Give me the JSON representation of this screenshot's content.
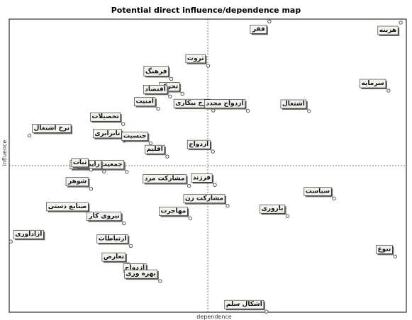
{
  "chart_data": {
    "type": "scatter",
    "title": "Potential direct influence/dependence map",
    "xlabel": "dependence",
    "ylabel": "influence",
    "xlim": [
      0,
      100
    ],
    "ylim": [
      0,
      100
    ],
    "x_divider": 50,
    "y_divider": 50,
    "grid": false,
    "colors": {
      "frame": "#000000",
      "divider": "#555555",
      "point": "#555555",
      "label_bg": "#f4f4ee",
      "label_shadow": "#666666"
    },
    "points": [
      {
        "label": "هزینه",
        "x": 98.6,
        "y": 98.8
      },
      {
        "label": "فقر",
        "x": 65.5,
        "y": 99.2
      },
      {
        "label": "ثروت",
        "x": 50.1,
        "y": 84.1
      },
      {
        "label": "فرهنگ",
        "x": 40.8,
        "y": 79.6
      },
      {
        "label": "تحرک",
        "x": 43.6,
        "y": 74.5
      },
      {
        "label": "اقتصاد",
        "x": 40.5,
        "y": 73.6
      },
      {
        "label": "امنیت",
        "x": 37.5,
        "y": 69.4
      },
      {
        "label": "نرخ بیکاری",
        "x": 51.4,
        "y": 68.8
      },
      {
        "label": "ازدواج مجدد",
        "x": 60.1,
        "y": 68.7
      },
      {
        "label": "اشتغال",
        "x": 75.5,
        "y": 68.6
      },
      {
        "label": "سرمایه",
        "x": 95.5,
        "y": 75.6
      },
      {
        "label": "تحصیلات",
        "x": 28.7,
        "y": 64.2
      },
      {
        "label": "نرخ اشتغال",
        "x": 5.1,
        "y": 60.3
      },
      {
        "label": "نابرابری",
        "x": 29.0,
        "y": 58.5
      },
      {
        "label": "جنسیت",
        "x": 35.6,
        "y": 57.6
      },
      {
        "label": "اقلیم",
        "x": 39.8,
        "y": 53.1
      },
      {
        "label": "ازدواج",
        "x": 51.3,
        "y": 54.8
      },
      {
        "label": "جمعیت اجتماعی",
        "x": 29.6,
        "y": 47.9
      },
      {
        "label": "زایمان",
        "x": 23.9,
        "y": 48.0
      },
      {
        "label": "ثبات",
        "x": 20.6,
        "y": 48.6
      },
      {
        "label": "شوهر",
        "x": 20.6,
        "y": 42.1
      },
      {
        "label": "فرزند",
        "x": 51.8,
        "y": 43.4
      },
      {
        "label": "مشارکت مرد",
        "x": 45.3,
        "y": 43.1
      },
      {
        "label": "مشارکت زن",
        "x": 55.0,
        "y": 36.3
      },
      {
        "label": "سیاست",
        "x": 81.8,
        "y": 38.8
      },
      {
        "label": "باروری",
        "x": 70.1,
        "y": 32.8
      },
      {
        "label": "صنایع دستی",
        "x": 20.6,
        "y": 33.6
      },
      {
        "label": "نیروی کار",
        "x": 28.9,
        "y": 30.3
      },
      {
        "label": "مهاجرت",
        "x": 45.6,
        "y": 32.0
      },
      {
        "label": "ازاداوری",
        "x": 0.4,
        "y": 24.1
      },
      {
        "label": "ارتباطات",
        "x": 30.6,
        "y": 22.6
      },
      {
        "label": "تعارض",
        "x": 30.0,
        "y": 16.4
      },
      {
        "label": "ازدواج",
        "x": 35.2,
        "y": 12.7
      },
      {
        "label": "بهره وری",
        "x": 38.0,
        "y": 10.6
      },
      {
        "label": "تنوع",
        "x": 97.2,
        "y": 19.0
      },
      {
        "label": "اشکال سلم",
        "x": 64.8,
        "y": 0.2
      }
    ]
  }
}
